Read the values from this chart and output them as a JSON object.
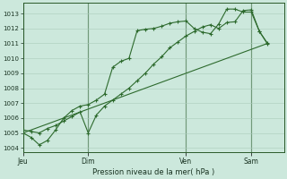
{
  "bg_color": "#cce8dc",
  "grid_color": "#aaccbb",
  "line_color": "#2d6a2d",
  "title": "Pression niveau de la mer( hPa )",
  "ylim": [
    1003.7,
    1013.7
  ],
  "yticks": [
    1004,
    1005,
    1006,
    1007,
    1008,
    1009,
    1010,
    1011,
    1012,
    1013
  ],
  "xtick_labels": [
    "Jeu",
    "Dim",
    "Ven",
    "Sam"
  ],
  "xtick_positions": [
    0,
    8,
    20,
    28
  ],
  "xlim": [
    0,
    32
  ],
  "vline_positions": [
    0,
    8,
    20,
    28
  ],
  "series1_x": [
    0,
    1,
    2,
    3,
    4,
    5,
    6,
    7,
    8,
    9,
    10,
    11,
    12,
    13,
    14,
    15,
    16,
    17,
    18,
    19,
    20,
    21,
    22,
    23,
    24,
    25,
    26,
    27,
    28,
    29,
    30
  ],
  "series1_y": [
    1005.0,
    1004.7,
    1004.2,
    1004.5,
    1005.2,
    1006.0,
    1006.5,
    1006.8,
    1006.9,
    1007.2,
    1007.6,
    1009.4,
    1009.8,
    1010.0,
    1011.85,
    1011.95,
    1012.0,
    1012.15,
    1012.35,
    1012.45,
    1012.5,
    1012.0,
    1011.75,
    1011.65,
    1012.3,
    1013.3,
    1013.3,
    1013.1,
    1013.1,
    1011.8,
    1010.95
  ],
  "series2_x": [
    0,
    1,
    2,
    3,
    4,
    5,
    6,
    7,
    8,
    9,
    10,
    11,
    12,
    13,
    14,
    15,
    16,
    17,
    18,
    19,
    20,
    21,
    22,
    23,
    24,
    25,
    26,
    27,
    28,
    29,
    30
  ],
  "series2_y": [
    1005.2,
    1005.1,
    1005.0,
    1005.3,
    1005.5,
    1005.8,
    1006.1,
    1006.4,
    1005.0,
    1006.2,
    1006.8,
    1007.2,
    1007.6,
    1008.0,
    1008.5,
    1009.0,
    1009.6,
    1010.1,
    1010.7,
    1011.1,
    1011.5,
    1011.8,
    1012.1,
    1012.25,
    1012.0,
    1012.4,
    1012.45,
    1013.2,
    1013.25,
    1011.8,
    1011.0
  ],
  "series3_x": [
    0,
    30
  ],
  "series3_y": [
    1005.0,
    1011.0
  ]
}
